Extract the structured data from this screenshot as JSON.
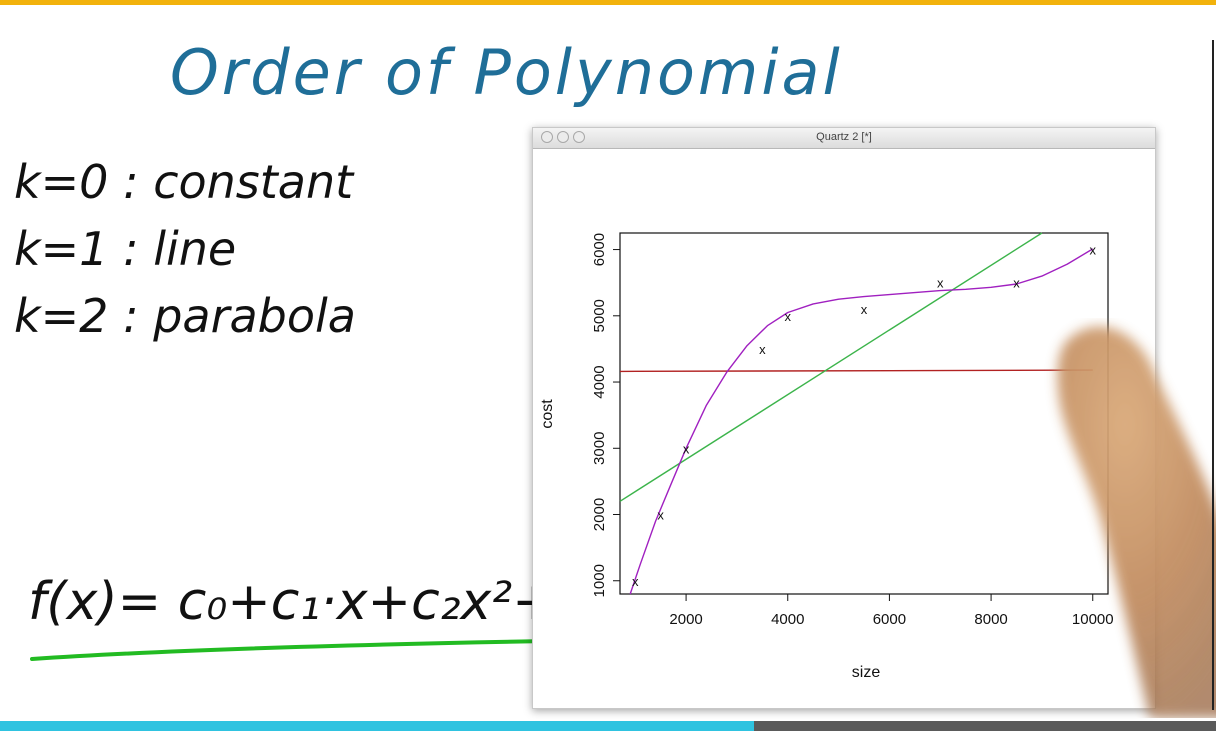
{
  "lesson": {
    "title": "Order of Polynomial",
    "orders": [
      {
        "label": "k=0 : constant"
      },
      {
        "label": "k=1 : line"
      },
      {
        "label": "k=2 : parabola"
      }
    ],
    "formula": "f(x)= c₀+c₁·x+c₂x²+ ···",
    "progress": 0.62
  },
  "window": {
    "title": "Quartz 2 [*]"
  },
  "colors": {
    "top_bar": "#f2b20c",
    "title_ink": "#1f6e98",
    "progress_fill": "#2fc3e0",
    "constant_fit": "#b22222",
    "line_fit": "#3cb44b",
    "curve_fit": "#a020c0",
    "underline": "#22bb22"
  },
  "chart_data": {
    "type": "scatter",
    "xlabel": "size",
    "ylabel": "cost",
    "xlim": [
      700,
      10300
    ],
    "ylim": [
      800,
      6250
    ],
    "x_ticks": [
      2000,
      4000,
      6000,
      8000,
      10000
    ],
    "y_ticks": [
      1000,
      2000,
      3000,
      4000,
      5000,
      6000
    ],
    "marker": "x",
    "points": [
      {
        "x": 1000,
        "y": 1000
      },
      {
        "x": 1500,
        "y": 2000
      },
      {
        "x": 2000,
        "y": 3000
      },
      {
        "x": 3500,
        "y": 4500
      },
      {
        "x": 4000,
        "y": 5000
      },
      {
        "x": 5500,
        "y": 5100
      },
      {
        "x": 7000,
        "y": 5500
      },
      {
        "x": 8500,
        "y": 5500
      },
      {
        "x": 10000,
        "y": 6000
      }
    ],
    "fits": [
      {
        "kind": "constant",
        "color": "#b22222",
        "x": [
          700,
          10000
        ],
        "y": [
          4160,
          4180
        ]
      },
      {
        "kind": "line",
        "color": "#3cb44b",
        "x": [
          700,
          9000
        ],
        "y": [
          2200,
          6250
        ]
      },
      {
        "kind": "polynomial",
        "color": "#a020c0",
        "x": [
          900,
          1100,
          1400,
          1700,
          2000,
          2400,
          2800,
          3200,
          3600,
          4000,
          4500,
          5000,
          5500,
          6000,
          6500,
          7000,
          7500,
          8000,
          8500,
          9000,
          9500,
          10000
        ],
        "y": [
          800,
          1250,
          1900,
          2450,
          3000,
          3650,
          4150,
          4550,
          4850,
          5050,
          5180,
          5250,
          5290,
          5320,
          5350,
          5380,
          5400,
          5430,
          5480,
          5600,
          5780,
          6010
        ]
      }
    ]
  }
}
